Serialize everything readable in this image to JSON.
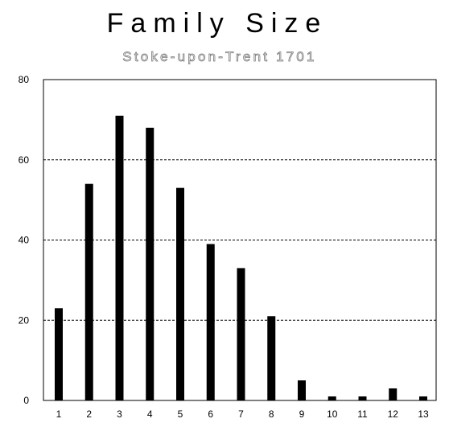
{
  "chart_data": {
    "type": "bar",
    "title": "Family Size",
    "subtitle": "Stoke-upon-Trent 1701",
    "categories": [
      "1",
      "2",
      "3",
      "4",
      "5",
      "6",
      "7",
      "8",
      "9",
      "10",
      "11",
      "12",
      "13"
    ],
    "values": [
      23,
      54,
      71,
      68,
      53,
      39,
      33,
      21,
      5,
      1,
      1,
      3,
      1
    ],
    "ylim": [
      0,
      80
    ],
    "yticks": [
      "0",
      "20",
      "40",
      "60",
      "80"
    ],
    "xlabel": "",
    "ylabel": "",
    "grid": "horizontal dashed",
    "legend": "none",
    "bar_color": "#000000",
    "grid_color": "#000000"
  }
}
